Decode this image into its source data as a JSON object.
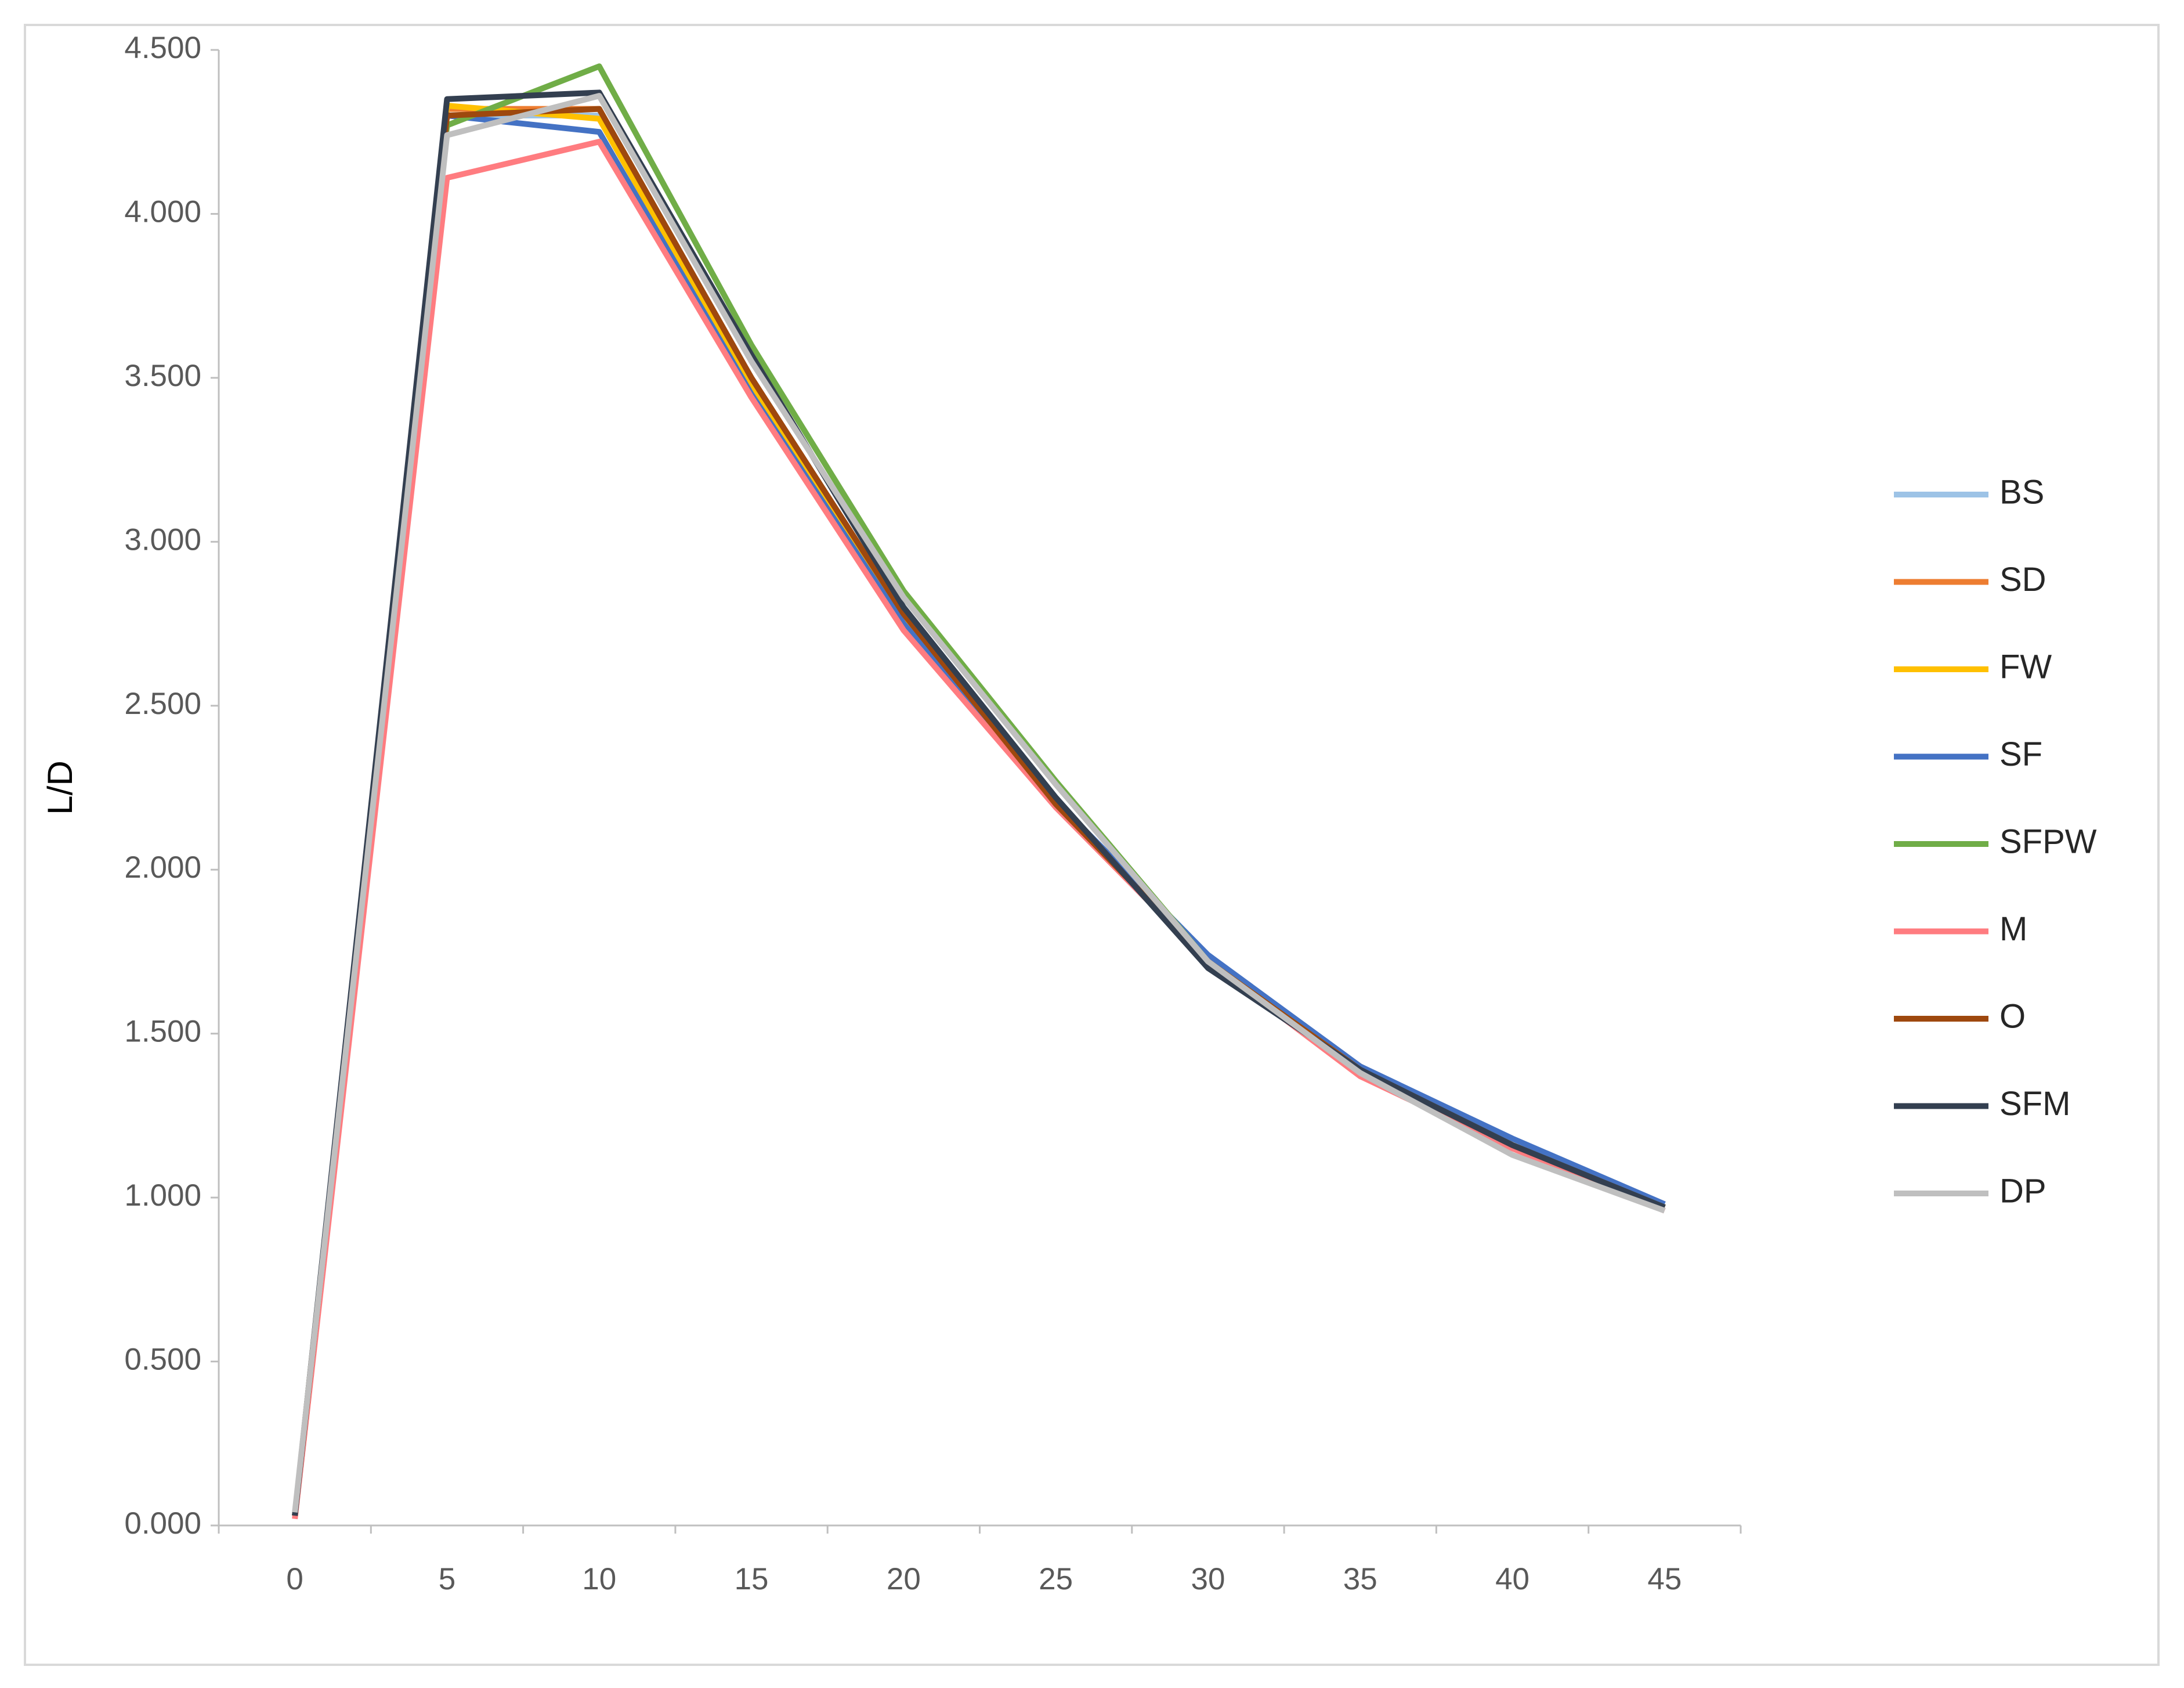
{
  "chart_data": {
    "type": "line",
    "y_label": "L/D",
    "categories": [
      0,
      5,
      10,
      15,
      20,
      25,
      30,
      35,
      40,
      45
    ],
    "ylim": [
      0,
      4.5
    ],
    "yticks": [
      {
        "value": 0,
        "label": "0.000"
      },
      {
        "value": 0.5,
        "label": "0.500"
      },
      {
        "value": 1,
        "label": "1.000"
      },
      {
        "value": 1.5,
        "label": "1.500"
      },
      {
        "value": 2,
        "label": "2.000"
      },
      {
        "value": 2.5,
        "label": "2.500"
      },
      {
        "value": 3,
        "label": "3.000"
      },
      {
        "value": 3.5,
        "label": "3.500"
      },
      {
        "value": 4,
        "label": "4.000"
      },
      {
        "value": 4.5,
        "label": "4.500"
      }
    ],
    "grid": false,
    "legend": "right",
    "series": [
      {
        "name": "BS",
        "color": "#9dc3e6",
        "values": [
          0.03,
          4.3,
          4.3,
          3.48,
          2.77,
          2.21,
          1.72,
          1.39,
          1.16,
          0.97
        ]
      },
      {
        "name": "SD",
        "color": "#ed7d31",
        "values": [
          0.03,
          4.32,
          4.32,
          3.49,
          2.77,
          2.21,
          1.72,
          1.39,
          1.16,
          0.97
        ]
      },
      {
        "name": "FW",
        "color": "#ffc000",
        "values": [
          0.03,
          4.33,
          4.29,
          3.47,
          2.76,
          2.21,
          1.72,
          1.4,
          1.16,
          0.97
        ]
      },
      {
        "name": "SF",
        "color": "#4472c4",
        "values": [
          0.03,
          4.3,
          4.25,
          3.45,
          2.75,
          2.21,
          1.74,
          1.4,
          1.18,
          0.98
        ]
      },
      {
        "name": "SFPW",
        "color": "#70ad47",
        "values": [
          0.03,
          4.27,
          4.45,
          3.6,
          2.85,
          2.27,
          1.72,
          1.39,
          1.16,
          0.97
        ]
      },
      {
        "name": "M",
        "color": "#ff7c80",
        "values": [
          0.02,
          4.11,
          4.22,
          3.44,
          2.73,
          2.19,
          1.72,
          1.37,
          1.15,
          0.96
        ]
      },
      {
        "name": "O",
        "color": "#9e480e",
        "values": [
          0.03,
          4.3,
          4.32,
          3.5,
          2.78,
          2.2,
          1.72,
          1.39,
          1.16,
          0.97
        ]
      },
      {
        "name": "SFM",
        "color": "#333f50",
        "values": [
          0.03,
          4.35,
          4.37,
          3.57,
          2.8,
          2.22,
          1.7,
          1.39,
          1.16,
          0.97
        ]
      },
      {
        "name": "DP",
        "color": "#bfbfbf",
        "values": [
          0.04,
          4.24,
          4.36,
          3.55,
          2.83,
          2.26,
          1.72,
          1.38,
          1.13,
          0.96
        ]
      }
    ]
  }
}
